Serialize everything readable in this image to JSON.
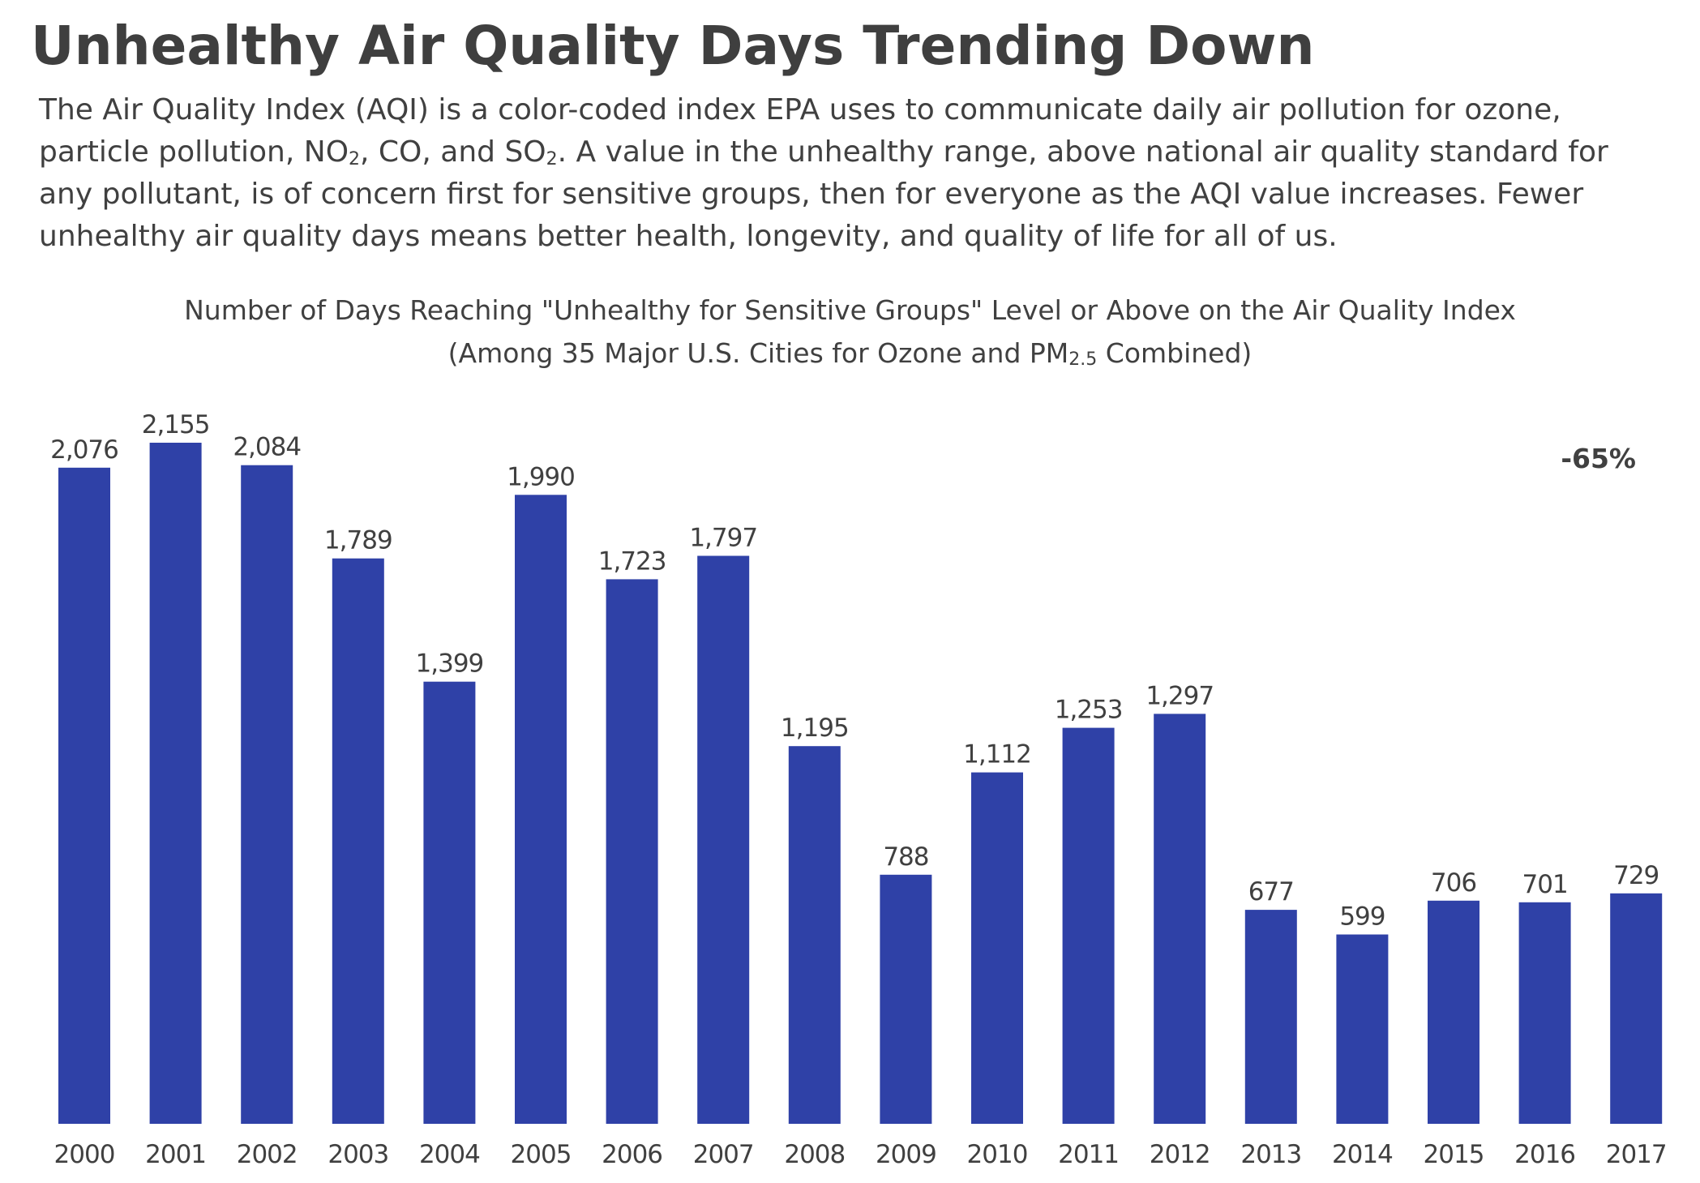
{
  "header": {
    "title": "Unhealthy Air Quality Days Trending Down",
    "intro": {
      "part1": "The Air Quality Index (AQI) is a color-coded index EPA uses to communicate daily air pollution for ozone, particle pollution, NO",
      "sub1": "2",
      "part2": ", CO, and SO",
      "sub2": "2",
      "part3": ". A value in the unhealthy range, above national air quality standard for any pollutant, is of concern first for sensitive groups, then for everyone as the AQI value increases. Fewer unhealthy air quality days means better health, longevity, and quality of life for all of us."
    }
  },
  "chart_data": {
    "type": "bar",
    "title": "Number of Days Reaching \"Unhealthy for Sensitive Groups\" Level or Above on the Air Quality Index",
    "subtitle": {
      "part1": "(Among 35 Major U.S. Cities for Ozone and PM",
      "sub": "2.5",
      "part2": " Combined)"
    },
    "categories": [
      "2000",
      "2001",
      "2002",
      "2003",
      "2004",
      "2005",
      "2006",
      "2007",
      "2008",
      "2009",
      "2010",
      "2011",
      "2012",
      "2013",
      "2014",
      "2015",
      "2016",
      "2017"
    ],
    "values": [
      2076,
      2155,
      2084,
      1789,
      1399,
      1990,
      1723,
      1797,
      1195,
      788,
      1112,
      1253,
      1297,
      677,
      599,
      706,
      701,
      729
    ],
    "value_labels": [
      "2,076",
      "2,155",
      "2,084",
      "1,789",
      "1,399",
      "1,990",
      "1,723",
      "1,797",
      "1,195",
      "788",
      "1,112",
      "1,253",
      "1,297",
      "677",
      "599",
      "706",
      "701",
      "729"
    ],
    "annotation": "-65%",
    "ylim": [
      0,
      2155
    ],
    "grid": false,
    "bar_color": "#2f41a7"
  }
}
